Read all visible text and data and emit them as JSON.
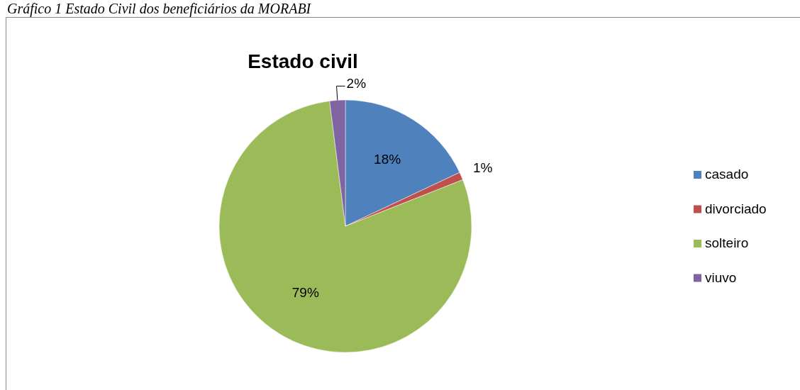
{
  "chart_data": {
    "type": "pie",
    "title": "Estado civil",
    "annotations": [
      "Gráfico 1 Estado Civil dos beneficiários da MORABI"
    ],
    "categories": [
      "casado",
      "divorciado",
      "solteiro",
      "viuvo"
    ],
    "values": [
      18,
      1,
      79,
      2
    ],
    "value_labels": [
      "18%",
      "1%",
      "79%",
      "2%"
    ],
    "colors": [
      "#4f81bd",
      "#c0504d",
      "#9bbb59",
      "#8064a2"
    ],
    "legend": "right"
  }
}
